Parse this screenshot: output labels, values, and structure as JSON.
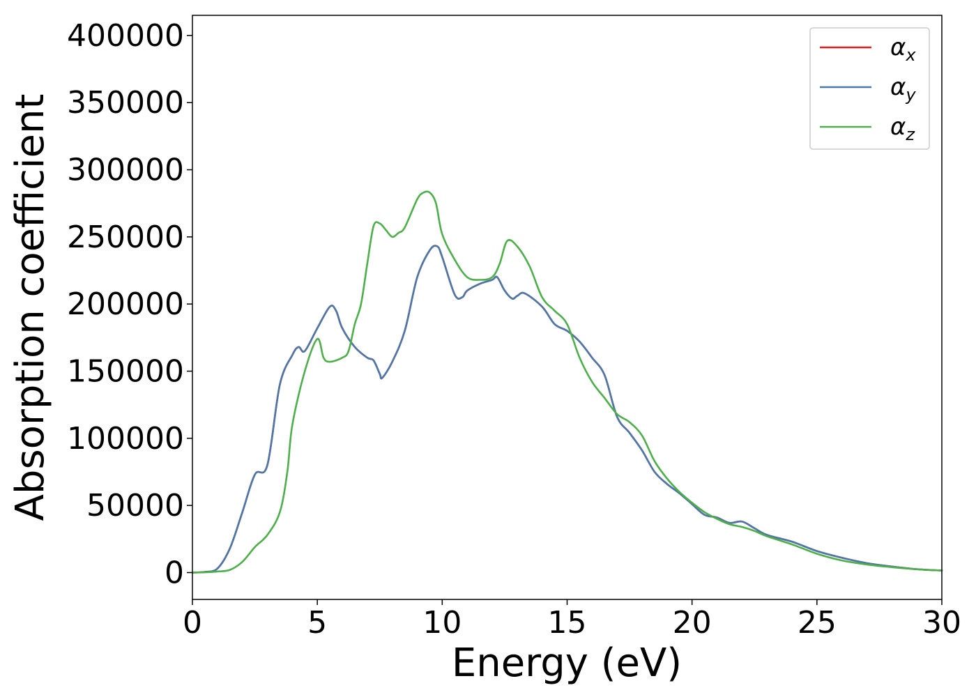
{
  "chart_data": {
    "type": "line",
    "title": "",
    "xlabel": "Energy (eV)",
    "ylabel": "Absorption coefficient",
    "xlim": [
      0,
      30
    ],
    "ylim": [
      -20000,
      415000
    ],
    "xticks": [
      0,
      5,
      10,
      15,
      20,
      25,
      30
    ],
    "xtick_labels": [
      "0",
      "5",
      "10",
      "15",
      "20",
      "25",
      "30"
    ],
    "yticks": [
      0,
      50000,
      100000,
      150000,
      200000,
      250000,
      300000,
      350000,
      400000
    ],
    "ytick_labels": [
      "0",
      "50000",
      "100000",
      "150000",
      "200000",
      "250000",
      "300000",
      "350000",
      "400000"
    ],
    "grid": false,
    "legend_position": "top-right",
    "series": [
      {
        "name": "α_x",
        "legend_base": "α",
        "legend_sub": "x",
        "color": "#e41a1c",
        "x": [
          0,
          0.5,
          1.0,
          1.5,
          2.0,
          2.5,
          3.0,
          3.5,
          4.0,
          4.25,
          4.5,
          5.0,
          5.5,
          5.75,
          6.0,
          6.5,
          7.0,
          7.25,
          7.5,
          7.6,
          8.0,
          8.5,
          9.0,
          9.5,
          9.8,
          10.0,
          10.5,
          10.8,
          11.0,
          11.5,
          12.0,
          12.2,
          12.5,
          12.8,
          13.0,
          13.3,
          14.0,
          14.5,
          15.0,
          15.5,
          16.0,
          16.5,
          17.0,
          17.5,
          18.0,
          18.5,
          19.0,
          19.5,
          20.0,
          20.5,
          21.0,
          21.5,
          22.0,
          22.5,
          23.0,
          24.0,
          25.0,
          26.0,
          27.0,
          28.0,
          29.0,
          30.0
        ],
        "values": [
          0,
          500,
          3000,
          18000,
          45000,
          73000,
          80000,
          140000,
          162000,
          168000,
          165000,
          182000,
          198000,
          195000,
          182000,
          168000,
          160000,
          158000,
          148000,
          145000,
          157000,
          180000,
          220000,
          240000,
          243000,
          235000,
          207000,
          205000,
          210000,
          215000,
          218000,
          220000,
          210000,
          204000,
          206000,
          208000,
          198000,
          185000,
          180000,
          172000,
          160000,
          147000,
          116000,
          104000,
          91000,
          75000,
          66000,
          59000,
          51000,
          43000,
          41000,
          37000,
          38000,
          33000,
          28000,
          23000,
          16000,
          11000,
          7000,
          4500,
          2500,
          1500
        ]
      },
      {
        "name": "α_y",
        "legend_base": "α",
        "legend_sub": "y",
        "color": "#4a78a8",
        "x": [
          0,
          0.5,
          1.0,
          1.5,
          2.0,
          2.5,
          3.0,
          3.5,
          4.0,
          4.25,
          4.5,
          5.0,
          5.5,
          5.75,
          6.0,
          6.5,
          7.0,
          7.25,
          7.5,
          7.6,
          8.0,
          8.5,
          9.0,
          9.5,
          9.8,
          10.0,
          10.5,
          10.8,
          11.0,
          11.5,
          12.0,
          12.2,
          12.5,
          12.8,
          13.0,
          13.3,
          14.0,
          14.5,
          15.0,
          15.5,
          16.0,
          16.5,
          17.0,
          17.5,
          18.0,
          18.5,
          19.0,
          19.5,
          20.0,
          20.5,
          21.0,
          21.5,
          22.0,
          22.5,
          23.0,
          24.0,
          25.0,
          26.0,
          27.0,
          28.0,
          29.0,
          30.0
        ],
        "values": [
          0,
          500,
          3000,
          18000,
          45000,
          73000,
          80000,
          140000,
          162000,
          168000,
          165000,
          182000,
          198000,
          195000,
          182000,
          168000,
          160000,
          158000,
          148000,
          145000,
          157000,
          180000,
          220000,
          240000,
          243000,
          235000,
          207000,
          205000,
          210000,
          215000,
          218000,
          220000,
          210000,
          204000,
          206000,
          208000,
          198000,
          185000,
          180000,
          172000,
          160000,
          147000,
          116000,
          104000,
          91000,
          75000,
          66000,
          59000,
          51000,
          43000,
          41000,
          37000,
          38000,
          33000,
          28000,
          23000,
          16000,
          11000,
          7000,
          4500,
          2500,
          1500
        ]
      },
      {
        "name": "α_z",
        "legend_base": "α",
        "legend_sub": "z",
        "color": "#4daf4a",
        "x": [
          0,
          0.5,
          1.0,
          1.5,
          2.0,
          2.5,
          3.0,
          3.5,
          3.8,
          4.0,
          4.5,
          5.0,
          5.25,
          5.5,
          6.0,
          6.25,
          6.5,
          6.75,
          7.0,
          7.25,
          7.5,
          7.75,
          8.0,
          8.25,
          8.5,
          9.0,
          9.25,
          9.5,
          9.75,
          10.0,
          10.5,
          11.0,
          11.5,
          12.0,
          12.3,
          12.6,
          13.0,
          13.5,
          14.0,
          14.5,
          15.0,
          15.5,
          16.0,
          16.5,
          17.0,
          17.5,
          18.0,
          18.5,
          19.0,
          19.5,
          20.0,
          20.5,
          21.0,
          21.5,
          22.0,
          22.5,
          23.0,
          24.0,
          25.0,
          26.0,
          27.0,
          28.0,
          29.0,
          30.0
        ],
        "values": [
          0,
          200,
          800,
          2000,
          8000,
          19000,
          28000,
          45000,
          75000,
          110000,
          150000,
          174000,
          160000,
          157000,
          160000,
          165000,
          185000,
          200000,
          230000,
          258000,
          260000,
          255000,
          250000,
          253000,
          257000,
          278000,
          283000,
          283000,
          275000,
          252000,
          233000,
          220000,
          218000,
          220000,
          230000,
          247000,
          243000,
          228000,
          205000,
          195000,
          185000,
          160000,
          142000,
          130000,
          118000,
          112000,
          102000,
          83000,
          70000,
          60000,
          52000,
          45000,
          40000,
          36000,
          34000,
          31000,
          27000,
          21000,
          14000,
          9000,
          6000,
          4000,
          2500,
          1500
        ]
      }
    ]
  }
}
